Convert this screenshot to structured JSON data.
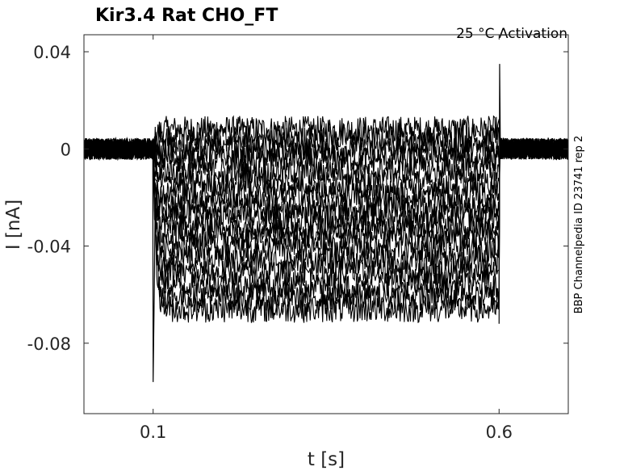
{
  "chart_data": {
    "type": "line",
    "title": "Kir3.4  Rat  CHO_FT",
    "subtitle": "25 °C  Activation",
    "xlabel": "t [s]",
    "ylabel": "I [nA]",
    "side_note": "BBP Channelpedia ID 23741 rep 2",
    "xlim": [
      0.0,
      0.7
    ],
    "ylim": [
      -0.109,
      0.047
    ],
    "xticks": [
      0.1,
      0.6
    ],
    "xtick_labels": [
      "0.1",
      "0.6"
    ],
    "yticks": [
      0.04,
      0,
      -0.04,
      -0.08
    ],
    "ytick_labels": [
      "0.04",
      "0",
      "-0.04",
      "-0.08"
    ],
    "pulse_window": [
      0.1,
      0.6
    ],
    "trace_color": "#000000",
    "noise_amplitude_nA": 0.004,
    "onset_spike_nA": -0.096,
    "offset_spike_nA": 0.035,
    "series_steady_state_nA": [
      0.008,
      0.004,
      0.0,
      -0.004,
      -0.009,
      -0.014,
      -0.019,
      -0.024,
      -0.028,
      -0.032,
      -0.036,
      -0.041,
      -0.046,
      -0.051,
      -0.056,
      -0.061,
      -0.066
    ]
  }
}
